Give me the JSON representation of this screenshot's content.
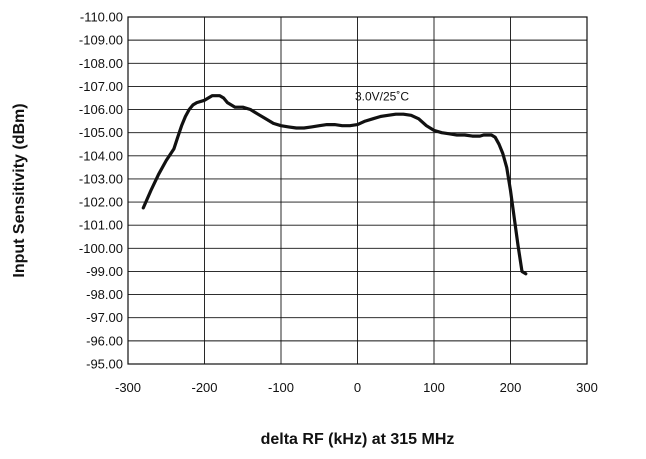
{
  "chart_data": {
    "type": "line",
    "title": "",
    "xlabel": "delta RF (kHz) at 315 MHz",
    "ylabel": "Input Sensitivity (dBm)",
    "xlim": [
      -300,
      300
    ],
    "ylim": [
      -95,
      -110
    ],
    "x_ticks": [
      -300,
      -200,
      -100,
      0,
      100,
      200,
      300
    ],
    "x_tick_labels": [
      "-300",
      "-200",
      "-100",
      "0",
      "100",
      "200",
      "300"
    ],
    "y_ticks": [
      -95,
      -96,
      -97,
      -98,
      -99,
      -100,
      -101,
      -102,
      -103,
      -104,
      -105,
      -106,
      -107,
      -108,
      -109,
      -110
    ],
    "y_tick_labels": [
      "-95.00",
      "-96.00",
      "-97.00",
      "-98.00",
      "-99.00",
      "-100.00",
      "-101.00",
      "-102.00",
      "-103.00",
      "-104.00",
      "-105.00",
      "-106.00",
      "-107.00",
      "-108.00",
      "-109.00",
      "-110.00"
    ],
    "grid": true,
    "legend": "none",
    "series": [
      {
        "x": [
          -280,
          -270,
          -260,
          -250,
          -240,
          -235,
          -230,
          -225,
          -220,
          -215,
          -210,
          -200,
          -195,
          -190,
          -185,
          -180,
          -175,
          -170,
          -160,
          -150,
          -140,
          -130,
          -120,
          -110,
          -100,
          -90,
          -80,
          -70,
          -60,
          -50,
          -40,
          -30,
          -20,
          -10,
          0,
          10,
          20,
          30,
          40,
          50,
          60,
          70,
          80,
          90,
          100,
          110,
          120,
          130,
          140,
          150,
          160,
          165,
          170,
          175,
          180,
          185,
          190,
          195,
          200,
          205,
          210,
          215,
          220
        ],
        "y": [
          -101.75,
          -102.5,
          -103.2,
          -103.8,
          -104.3,
          -104.8,
          -105.3,
          -105.7,
          -106.0,
          -106.2,
          -106.3,
          -106.4,
          -106.5,
          -106.6,
          -106.6,
          -106.6,
          -106.5,
          -106.3,
          -106.1,
          -106.1,
          -106.0,
          -105.8,
          -105.6,
          -105.4,
          -105.3,
          -105.25,
          -105.2,
          -105.2,
          -105.25,
          -105.3,
          -105.35,
          -105.35,
          -105.3,
          -105.3,
          -105.35,
          -105.5,
          -105.6,
          -105.7,
          -105.75,
          -105.8,
          -105.8,
          -105.75,
          -105.6,
          -105.3,
          -105.1,
          -105.0,
          -104.95,
          -104.9,
          -104.9,
          -104.85,
          -104.85,
          -104.9,
          -104.9,
          -104.9,
          -104.8,
          -104.5,
          -104.1,
          -103.5,
          -102.5,
          -101.3,
          -100.1,
          -99.0,
          -98.9
        ],
        "color": "#111111"
      }
    ],
    "annotations": [
      {
        "text": "3.0V/25˚C",
        "x": 32,
        "y": -106.4
      }
    ]
  }
}
